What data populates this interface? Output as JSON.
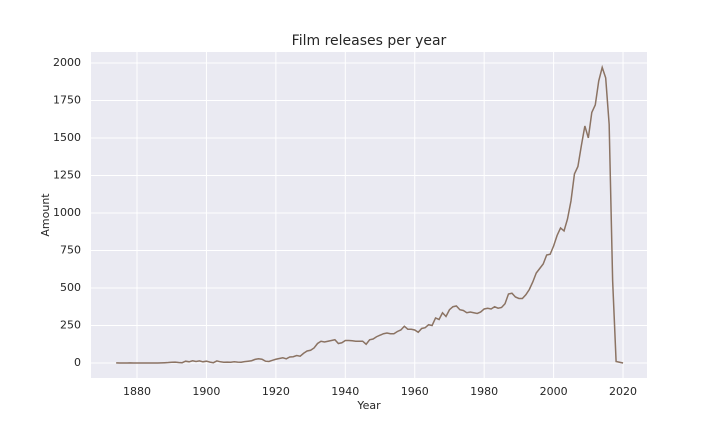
{
  "chart_data": {
    "type": "line",
    "title": "Film releases per year",
    "xlabel": "Year",
    "ylabel": "Amount",
    "x": [
      1874,
      1875,
      1876,
      1877,
      1878,
      1879,
      1880,
      1881,
      1882,
      1883,
      1884,
      1885,
      1886,
      1887,
      1888,
      1889,
      1890,
      1891,
      1892,
      1893,
      1894,
      1895,
      1896,
      1897,
      1898,
      1899,
      1900,
      1901,
      1902,
      1903,
      1904,
      1905,
      1906,
      1907,
      1908,
      1909,
      1910,
      1911,
      1912,
      1913,
      1914,
      1915,
      1916,
      1917,
      1918,
      1919,
      1920,
      1921,
      1922,
      1923,
      1924,
      1925,
      1926,
      1927,
      1928,
      1929,
      1930,
      1931,
      1932,
      1933,
      1934,
      1935,
      1936,
      1937,
      1938,
      1939,
      1940,
      1941,
      1942,
      1943,
      1944,
      1945,
      1946,
      1947,
      1948,
      1949,
      1950,
      1951,
      1952,
      1953,
      1954,
      1955,
      1956,
      1957,
      1958,
      1959,
      1960,
      1961,
      1962,
      1963,
      1964,
      1965,
      1966,
      1967,
      1968,
      1969,
      1970,
      1971,
      1972,
      1973,
      1974,
      1975,
      1976,
      1977,
      1978,
      1979,
      1980,
      1981,
      1982,
      1983,
      1984,
      1985,
      1986,
      1987,
      1988,
      1989,
      1990,
      1991,
      1992,
      1993,
      1994,
      1995,
      1996,
      1997,
      1998,
      1999,
      2000,
      2001,
      2002,
      2003,
      2004,
      2005,
      2006,
      2007,
      2008,
      2009,
      2010,
      2011,
      2012,
      2013,
      2014,
      2015,
      2016,
      2017,
      2018,
      2019,
      2020
    ],
    "series": [
      {
        "name": "Amount",
        "color": "#8b7363",
        "values": [
          1,
          0,
          0,
          0,
          1,
          0,
          0,
          0,
          0,
          0,
          0,
          0,
          0,
          1,
          2,
          3,
          5,
          6,
          3,
          2,
          12,
          8,
          15,
          10,
          14,
          8,
          12,
          6,
          2,
          14,
          8,
          5,
          6,
          5,
          8,
          6,
          5,
          9,
          12,
          15,
          24,
          28,
          25,
          12,
          10,
          18,
          25,
          30,
          35,
          28,
          40,
          42,
          50,
          45,
          65,
          80,
          85,
          100,
          130,
          145,
          140,
          145,
          150,
          155,
          130,
          135,
          150,
          150,
          148,
          145,
          145,
          145,
          125,
          155,
          160,
          175,
          185,
          195,
          200,
          195,
          195,
          210,
          220,
          245,
          225,
          225,
          220,
          205,
          230,
          235,
          255,
          250,
          300,
          290,
          335,
          310,
          355,
          375,
          380,
          355,
          350,
          335,
          340,
          335,
          330,
          340,
          360,
          365,
          360,
          375,
          365,
          370,
          395,
          460,
          465,
          440,
          430,
          430,
          455,
          490,
          540,
          600,
          630,
          660,
          720,
          725,
          780,
          850,
          900,
          880,
          960,
          1080,
          1260,
          1310,
          1450,
          1580,
          1500,
          1670,
          1720,
          1880,
          1970,
          1900,
          1590,
          550,
          10,
          5,
          0
        ]
      }
    ],
    "xlim": [
      1866.75,
      2026.9
    ],
    "ylim": [
      -100,
      2073
    ],
    "xticks": [
      1880,
      1900,
      1920,
      1940,
      1960,
      1980,
      2000,
      2020
    ],
    "yticks": [
      0,
      250,
      500,
      750,
      1000,
      1250,
      1500,
      1750,
      2000
    ],
    "grid": true
  }
}
